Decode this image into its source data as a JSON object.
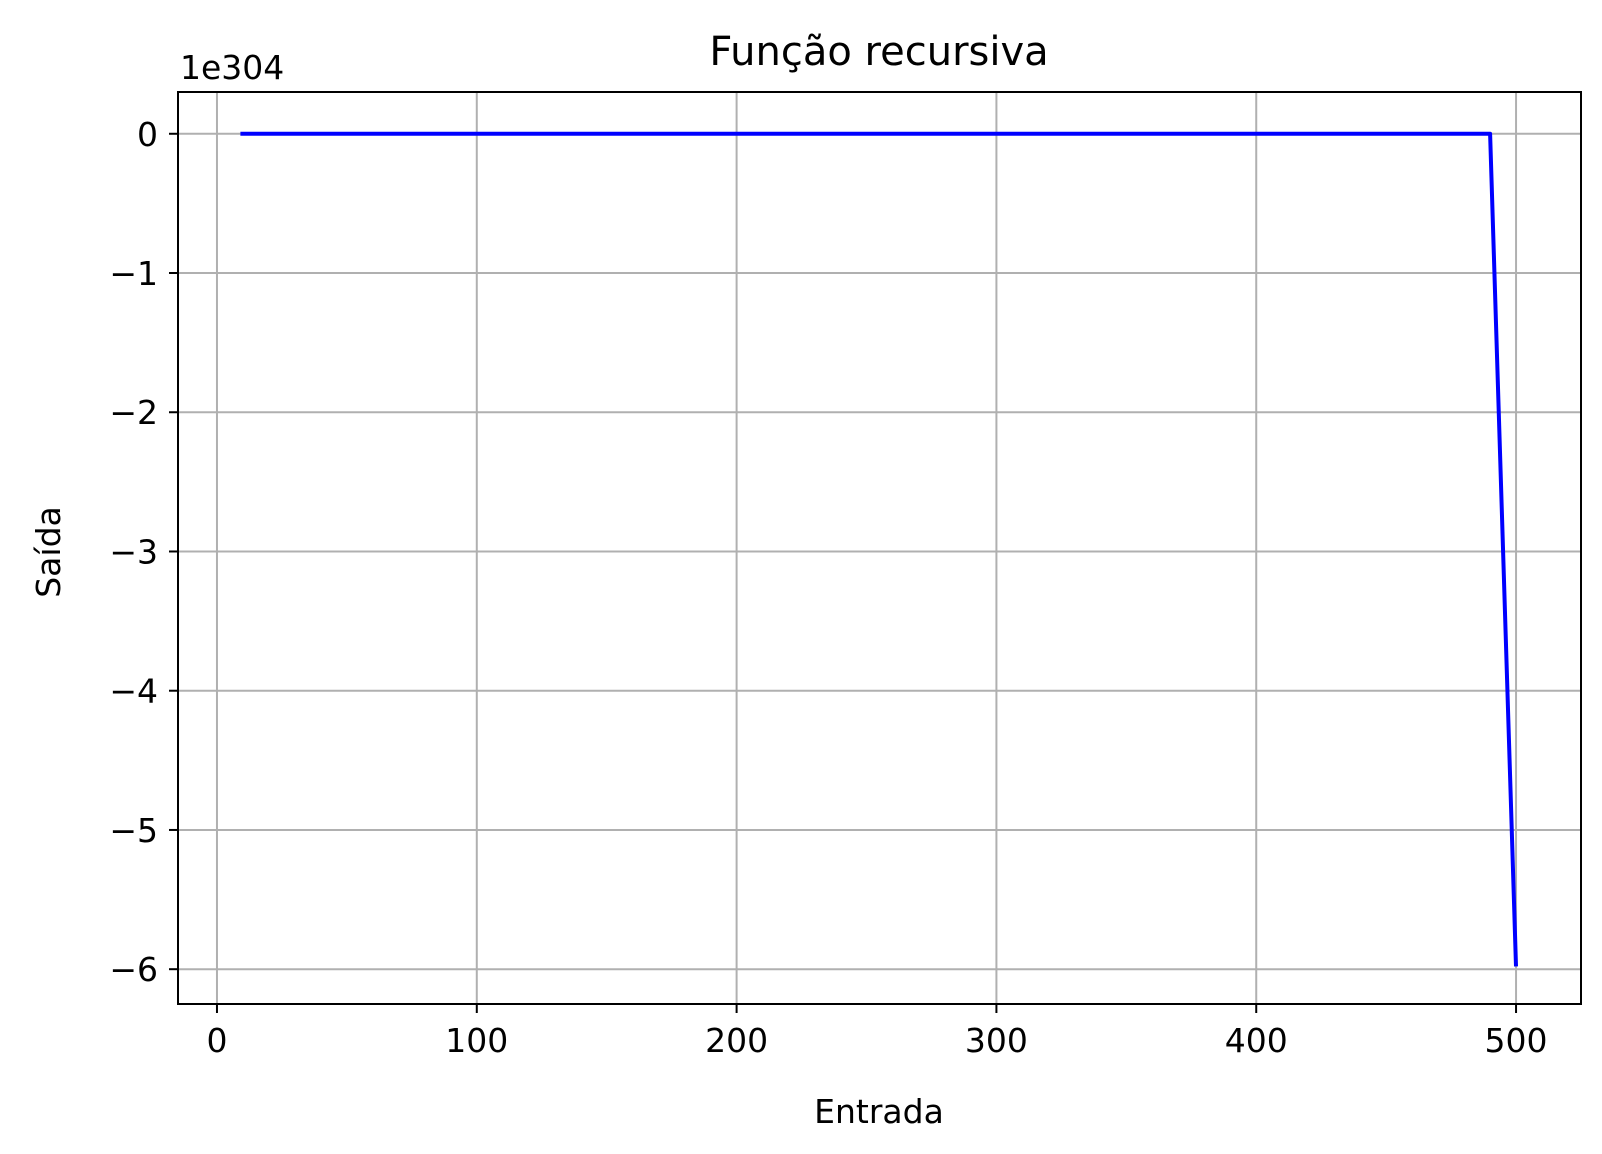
{
  "chart_data": {
    "type": "line",
    "title": "Função recursiva",
    "xlabel": "Entrada",
    "ylabel": "Saída",
    "y_offset_text": "1e304",
    "xlim": [
      -15,
      525
    ],
    "ylim": [
      -6.25,
      0.3
    ],
    "x_ticks": [
      0,
      100,
      200,
      300,
      400,
      500
    ],
    "x_tick_labels": [
      "0",
      "100",
      "200",
      "300",
      "400",
      "500"
    ],
    "y_ticks": [
      0,
      -1,
      -2,
      -3,
      -4,
      -5,
      -6
    ],
    "y_tick_labels": [
      "0",
      "−1",
      "−2",
      "−3",
      "−4",
      "−5",
      "−6"
    ],
    "grid": true,
    "series": [
      {
        "color": "#0000ff",
        "x": [
          9,
          100,
          200,
          300,
          400,
          490,
          500
        ],
        "y": [
          0,
          0,
          0,
          0,
          0,
          0,
          -5.98
        ]
      }
    ]
  }
}
